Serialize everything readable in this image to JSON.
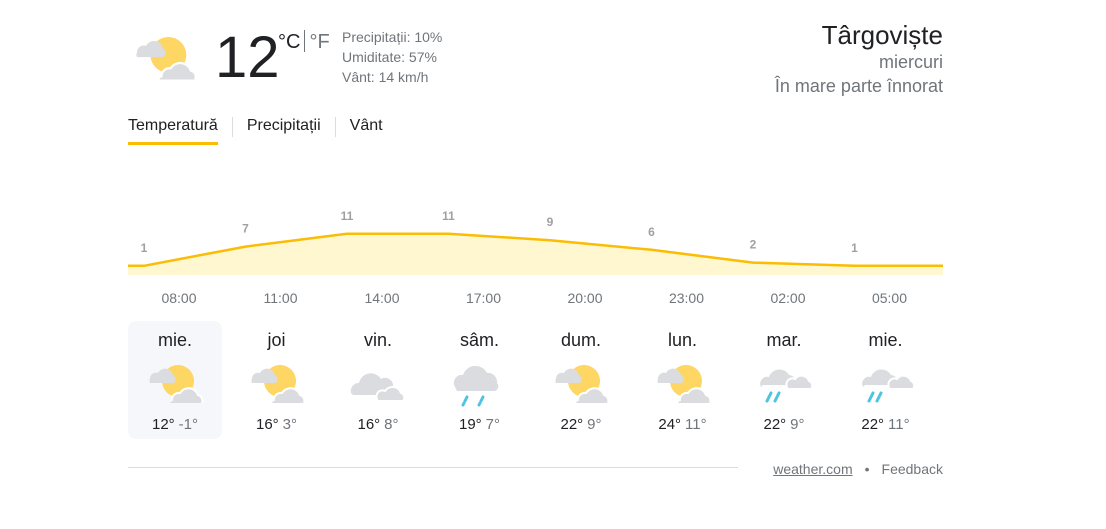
{
  "current": {
    "temperature": "12",
    "unit_c": "°C",
    "unit_f": "°F",
    "icon": "partly-cloudy-icon",
    "precipitation": "Precipitații: 10%",
    "humidity": "Umiditate: 57%",
    "wind": "Vânt: 14 km/h"
  },
  "location": {
    "city": "Târgoviște",
    "day": "miercuri",
    "condition": "În mare parte înnorat"
  },
  "tabs": [
    {
      "label": "Temperatură",
      "active": true
    },
    {
      "label": "Precipitații"
    },
    {
      "label": "Vânt"
    }
  ],
  "chart_data": {
    "type": "area",
    "x": [
      "08:00",
      "11:00",
      "14:00",
      "17:00",
      "20:00",
      "23:00",
      "02:00",
      "05:00"
    ],
    "values": [
      1,
      7,
      11,
      11,
      9,
      6,
      2,
      1
    ],
    "colors": {
      "line": "#fbbc04",
      "fill": "#fef7d0",
      "label": "#a0a0a0"
    }
  },
  "days": [
    {
      "name": "mie.",
      "icon": "partly-cloudy",
      "hi": "12°",
      "lo": "-1°",
      "selected": true
    },
    {
      "name": "joi",
      "icon": "partly-cloudy",
      "hi": "16°",
      "lo": "3°"
    },
    {
      "name": "vin.",
      "icon": "cloudy",
      "hi": "16°",
      "lo": "8°"
    },
    {
      "name": "sâm.",
      "icon": "rain",
      "hi": "19°",
      "lo": "7°"
    },
    {
      "name": "dum.",
      "icon": "partly-cloudy",
      "hi": "22°",
      "lo": "9°"
    },
    {
      "name": "lun.",
      "icon": "partly-cloudy",
      "hi": "24°",
      "lo": "11°"
    },
    {
      "name": "mar.",
      "icon": "scattered-showers",
      "hi": "22°",
      "lo": "9°"
    },
    {
      "name": "mie.",
      "icon": "scattered-showers",
      "hi": "22°",
      "lo": "11°"
    }
  ],
  "footer": {
    "source": "weather.com",
    "separator": "•",
    "feedback": "Feedback"
  }
}
